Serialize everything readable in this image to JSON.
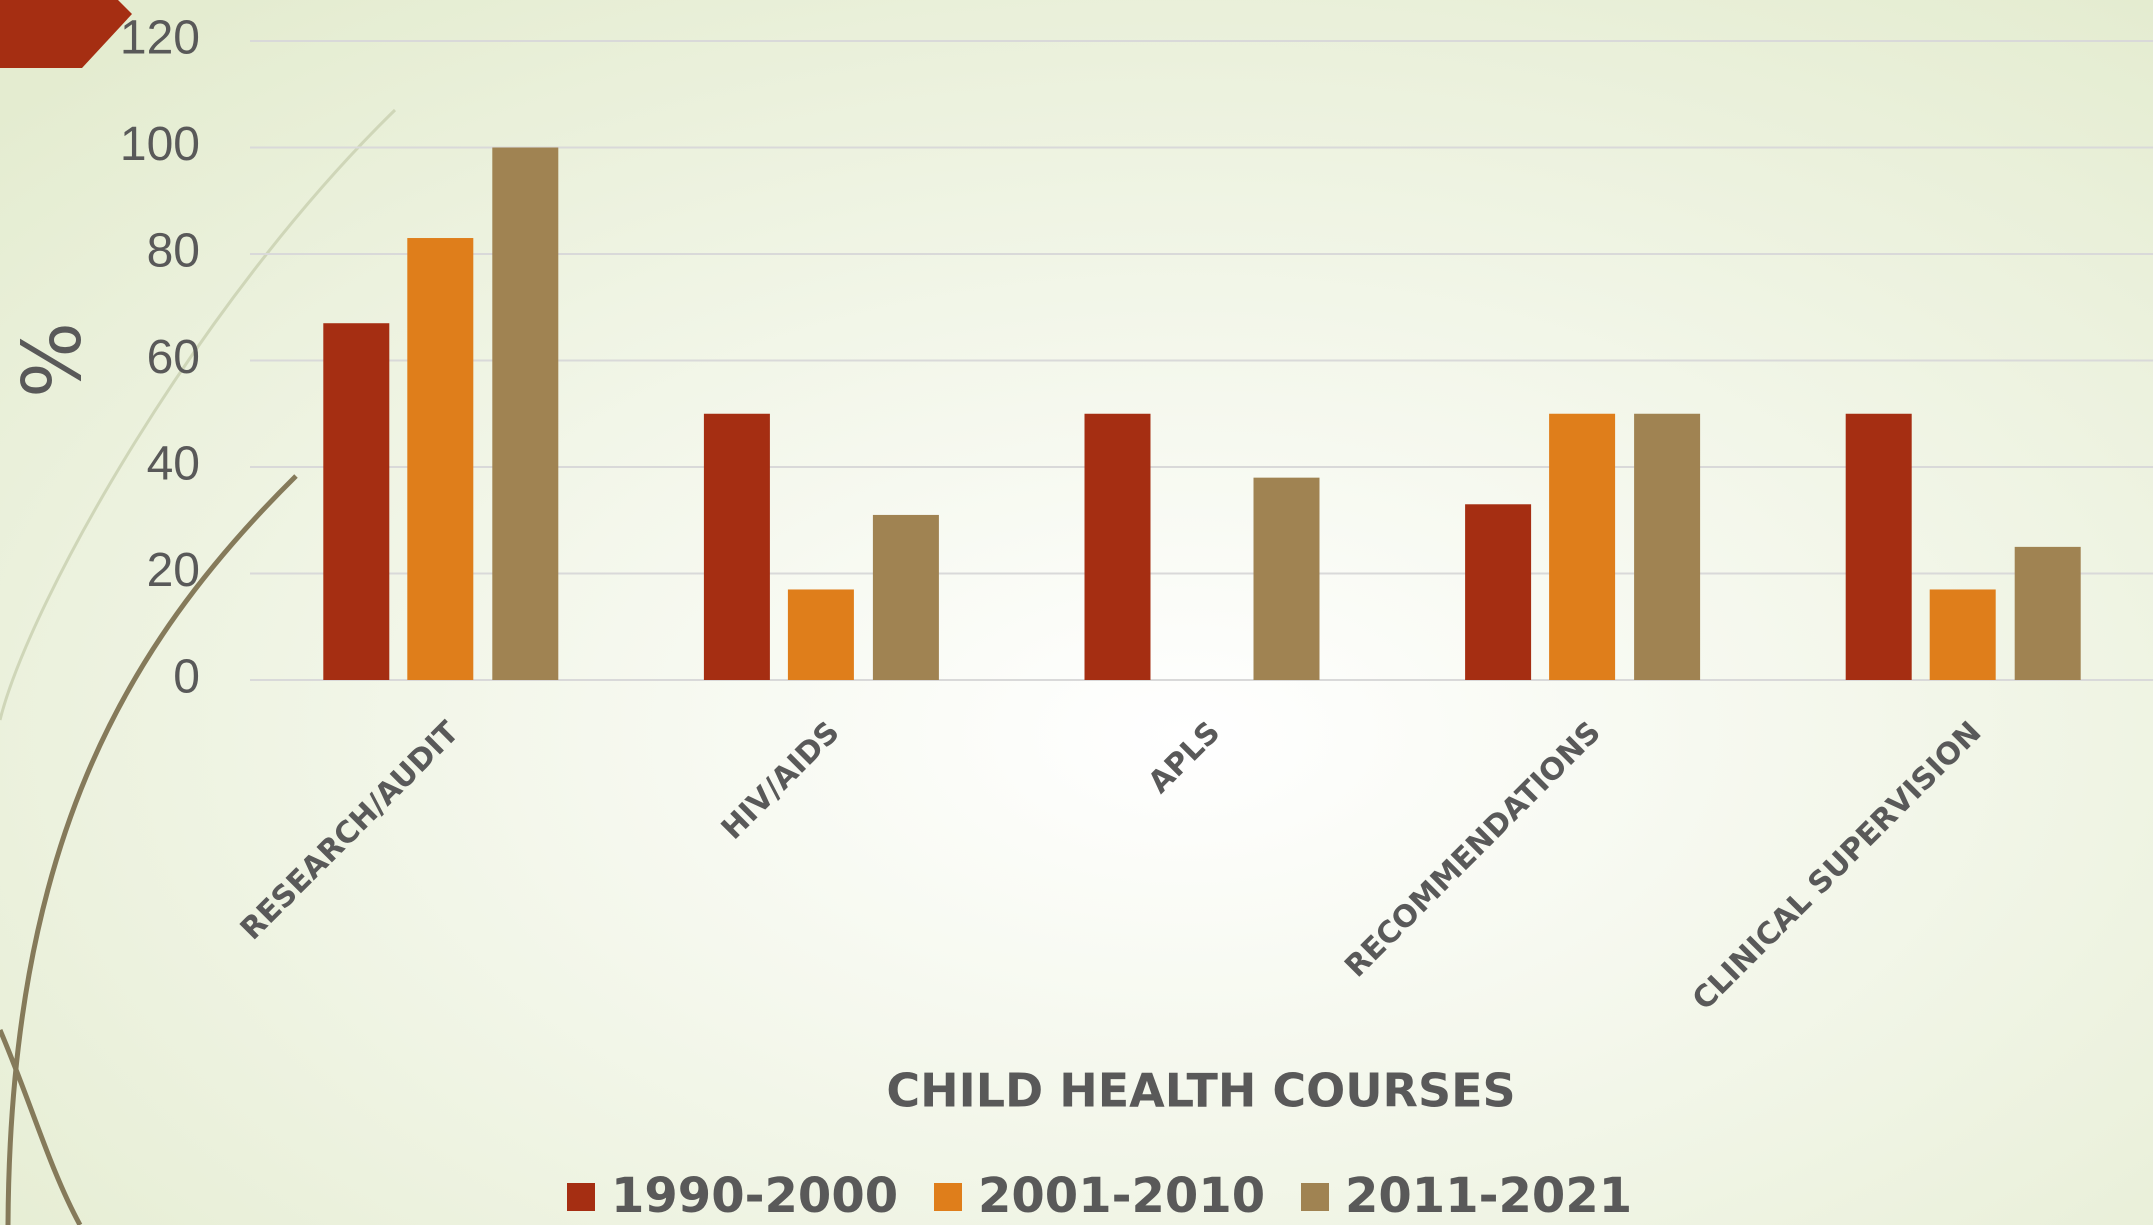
{
  "chart_data": {
    "type": "bar",
    "y_label": "%",
    "x_label": "CHILD HEALTH COURSES",
    "categories": [
      "RESEARCH/AUDIT",
      "HIV/AIDS",
      "APLS",
      "RECOMMENDATIONS",
      "CLINICAL SUPERVISION"
    ],
    "series": [
      {
        "name": "1990-2000",
        "color": "#a52e12",
        "values": [
          67,
          50,
          50,
          33,
          50
        ]
      },
      {
        "name": "2001-2010",
        "color": "#df7e1b",
        "values": [
          83,
          17,
          0,
          50,
          17
        ]
      },
      {
        "name": "2011-2021",
        "color": "#a08352",
        "values": [
          100,
          31,
          38,
          50,
          25
        ]
      }
    ],
    "ylim": [
      0,
      120
    ],
    "yticks": [
      0,
      20,
      40,
      60,
      80,
      100,
      120
    ],
    "grid": true,
    "legend": "bottom"
  }
}
